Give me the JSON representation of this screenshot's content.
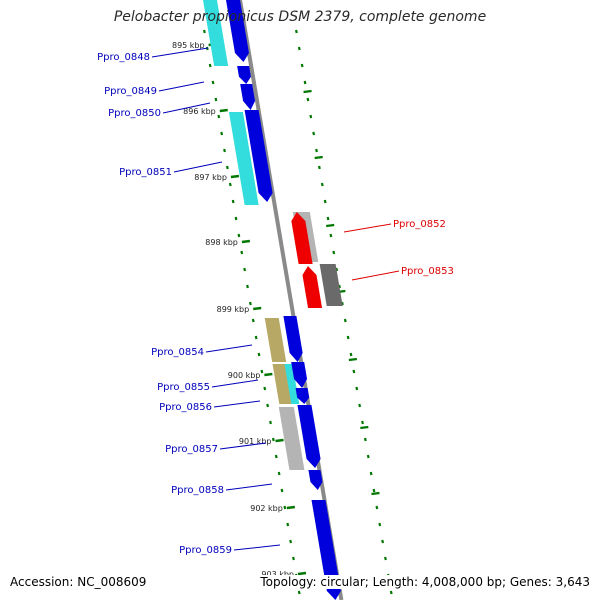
{
  "title": "Pelobacter propionicus DSM 2379, complete genome",
  "footer": {
    "accession": "Accession: NC_008609",
    "summary": "Topology: circular; Length: 4,008,000 bp; Genes: 3,643"
  },
  "colors": {
    "forward_gene": "#0000dd",
    "forward_cds": "#33dddd",
    "reverse_gene": "#ee0000",
    "reverse_cds_light": "#b4b4b4",
    "reverse_cds_dark": "#6a6a6a",
    "pseudo_gene": "#b8a866",
    "axis": "#8a8a8a",
    "tick": "#007700",
    "forward_label": "#0000bb",
    "reverse_label": "#dd0000"
  },
  "ticks": [
    {
      "label": "895 kbp"
    },
    {
      "label": "896 kbp"
    },
    {
      "label": "897 kbp"
    },
    {
      "label": "898 kbp"
    },
    {
      "label": "899 kbp"
    },
    {
      "label": "900 kbp"
    },
    {
      "label": "901 kbp"
    },
    {
      "label": "902 kbp"
    },
    {
      "label": "903 kbp"
    }
  ],
  "genes": [
    {
      "id": "Ppro_0848",
      "strand": "+"
    },
    {
      "id": "Ppro_0849",
      "strand": "+"
    },
    {
      "id": "Ppro_0850",
      "strand": "+"
    },
    {
      "id": "Ppro_0851",
      "strand": "+"
    },
    {
      "id": "Ppro_0852",
      "strand": "-"
    },
    {
      "id": "Ppro_0853",
      "strand": "-"
    },
    {
      "id": "Ppro_0854",
      "strand": "+"
    },
    {
      "id": "Ppro_0855",
      "strand": "+"
    },
    {
      "id": "Ppro_0856",
      "strand": "+"
    },
    {
      "id": "Ppro_0857",
      "strand": "+"
    },
    {
      "id": "Ppro_0858",
      "strand": "+"
    },
    {
      "id": "Ppro_0859",
      "strand": "+"
    }
  ]
}
